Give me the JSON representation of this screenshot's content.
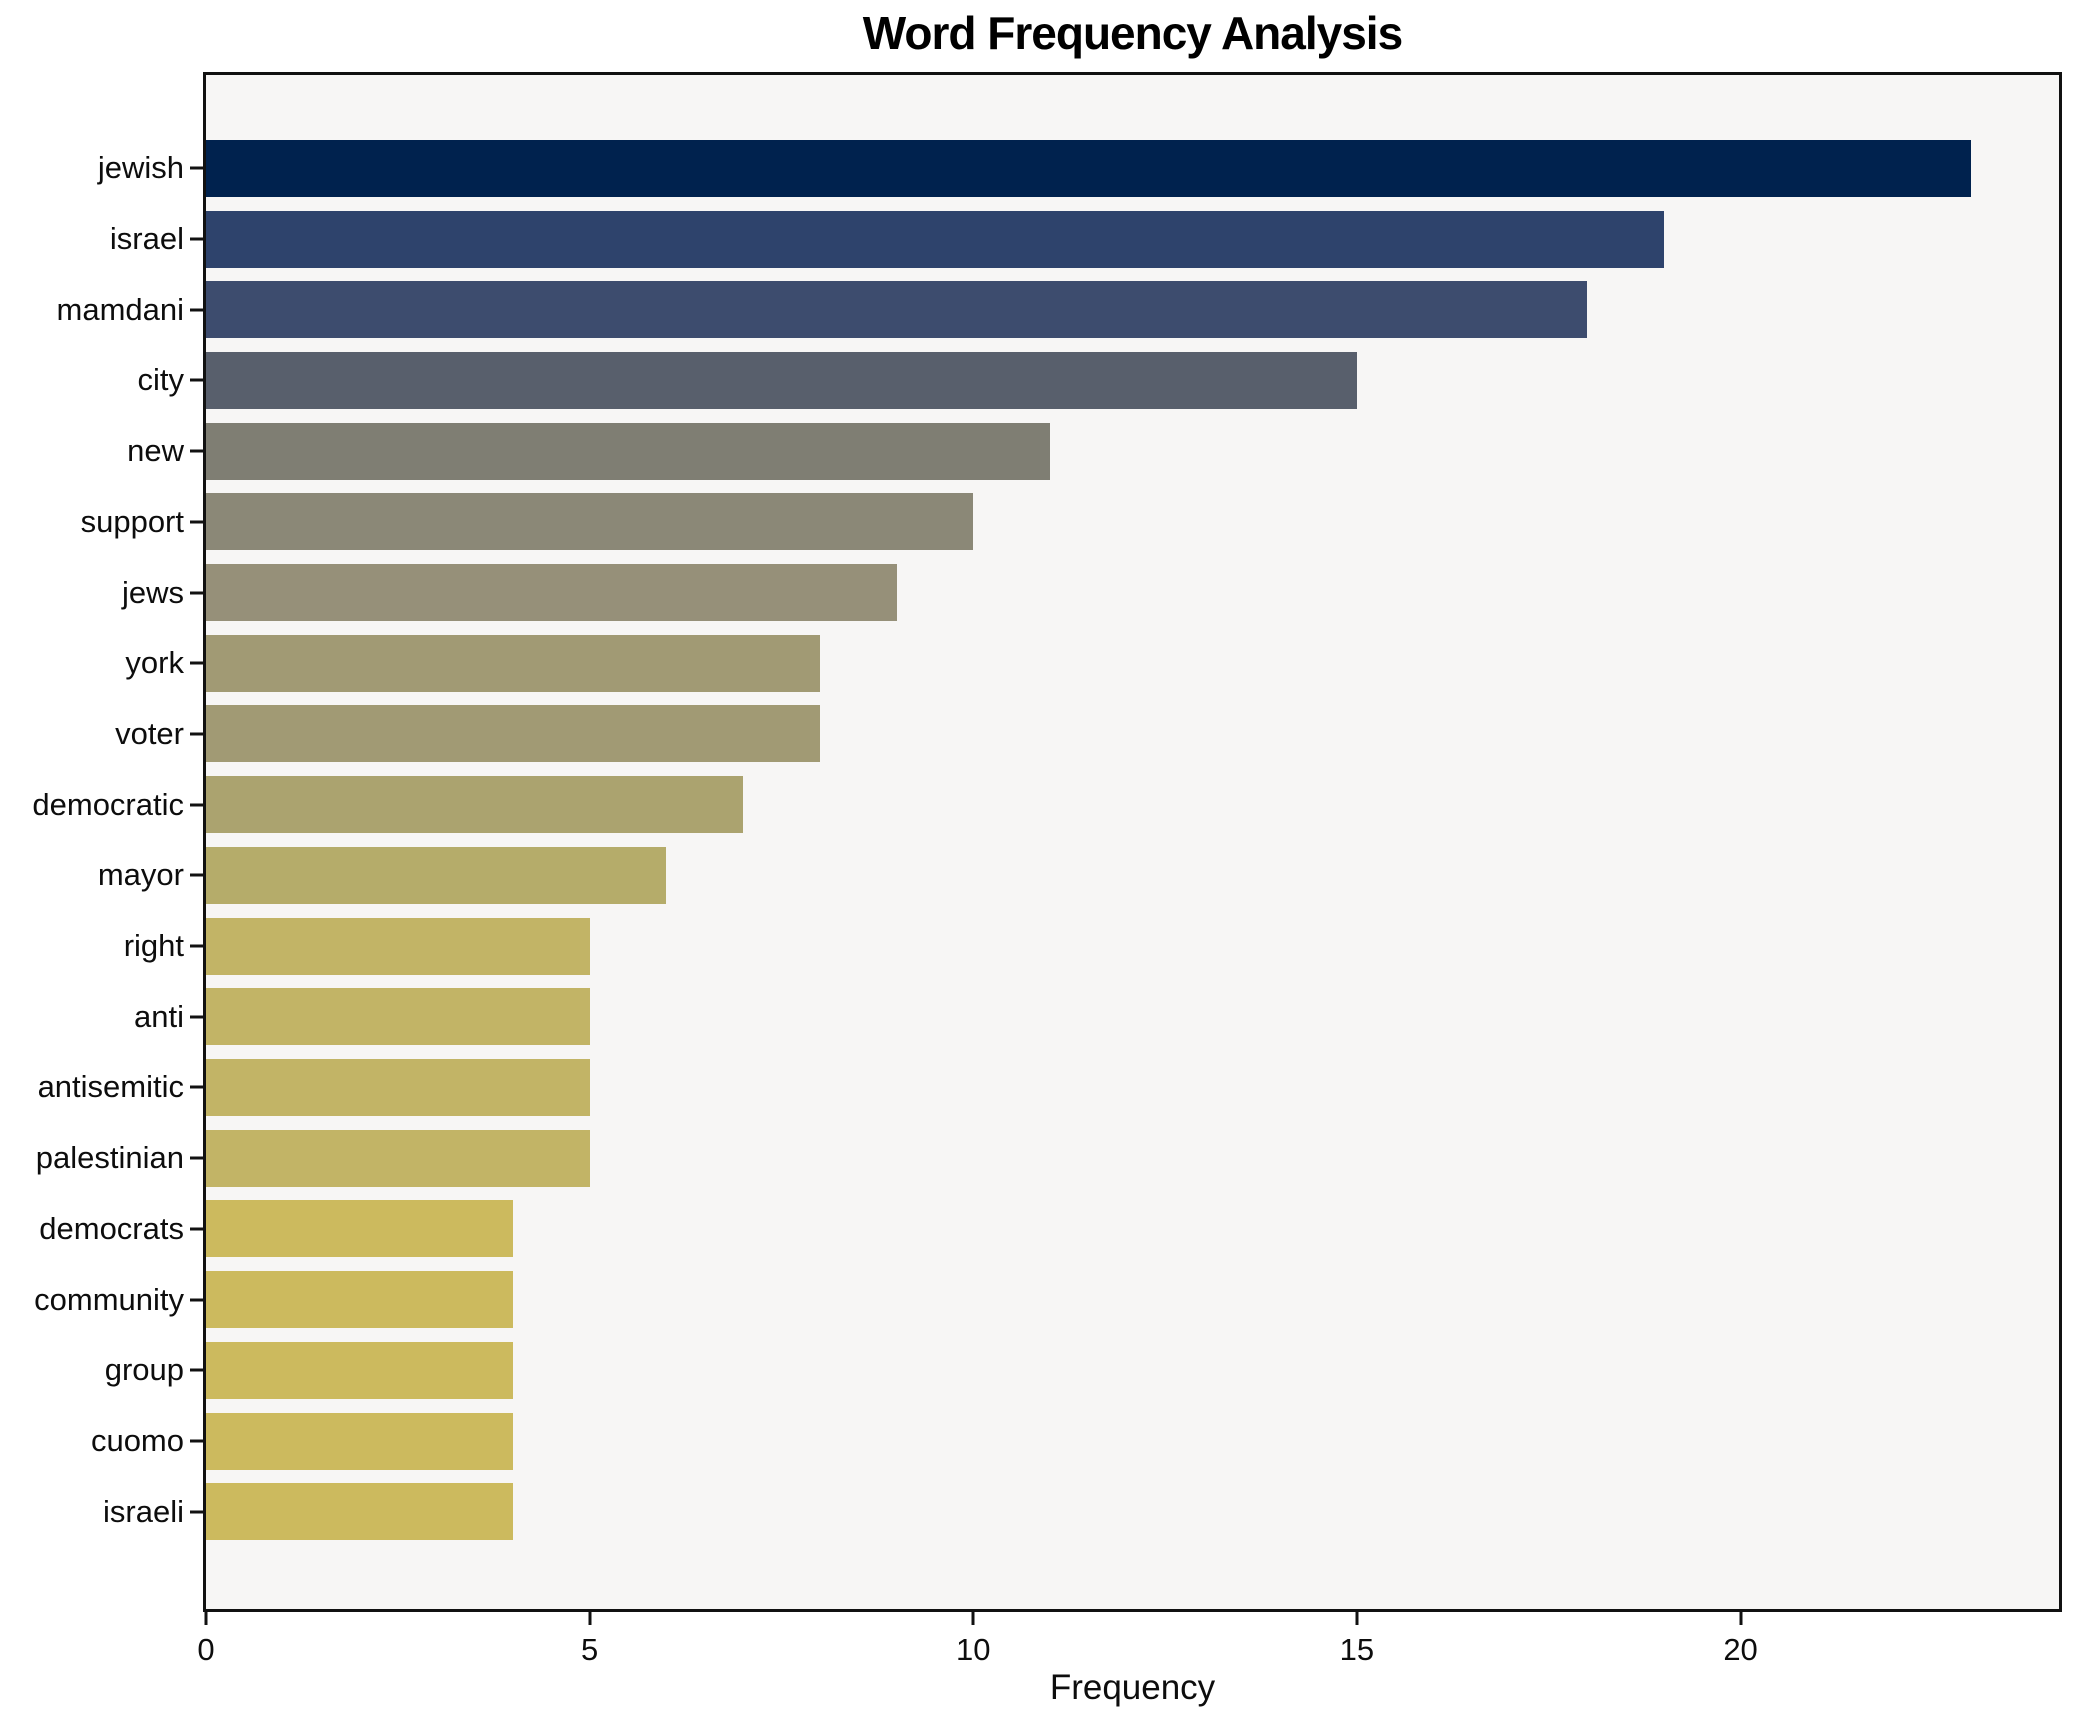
{
  "title": "Word Frequency Analysis",
  "chart_data": {
    "type": "bar",
    "orientation": "horizontal",
    "title": "Word Frequency Analysis",
    "xlabel": "Frequency",
    "ylabel": "",
    "categories": [
      "jewish",
      "israel",
      "mamdani",
      "city",
      "new",
      "support",
      "jews",
      "york",
      "voter",
      "democratic",
      "mayor",
      "right",
      "anti",
      "antisemitic",
      "palestinian",
      "democrats",
      "community",
      "group",
      "cuomo",
      "israeli"
    ],
    "values": [
      23,
      19,
      18,
      15,
      11,
      10,
      9,
      8,
      8,
      7,
      6,
      5,
      5,
      5,
      5,
      4,
      4,
      4,
      4,
      4
    ],
    "bar_colors": [
      "#00224e",
      "#2e436c",
      "#3d4c6e",
      "#585f6c",
      "#7f7e73",
      "#8b8877",
      "#969079",
      "#a19a74",
      "#a19a74",
      "#aba36f",
      "#b5ac6a",
      "#c2b466",
      "#c2b466",
      "#c2b466",
      "#c2b466",
      "#ccba5e",
      "#ccba5e",
      "#ccba5e",
      "#ccba5e",
      "#ccba5e"
    ],
    "xlim": [
      0,
      24.15
    ],
    "x_ticks": [
      0,
      5,
      10,
      15,
      20
    ],
    "grid": false,
    "legend": false,
    "plot_bg": "#f7f6f5",
    "fig_bg": "#ffffff"
  }
}
